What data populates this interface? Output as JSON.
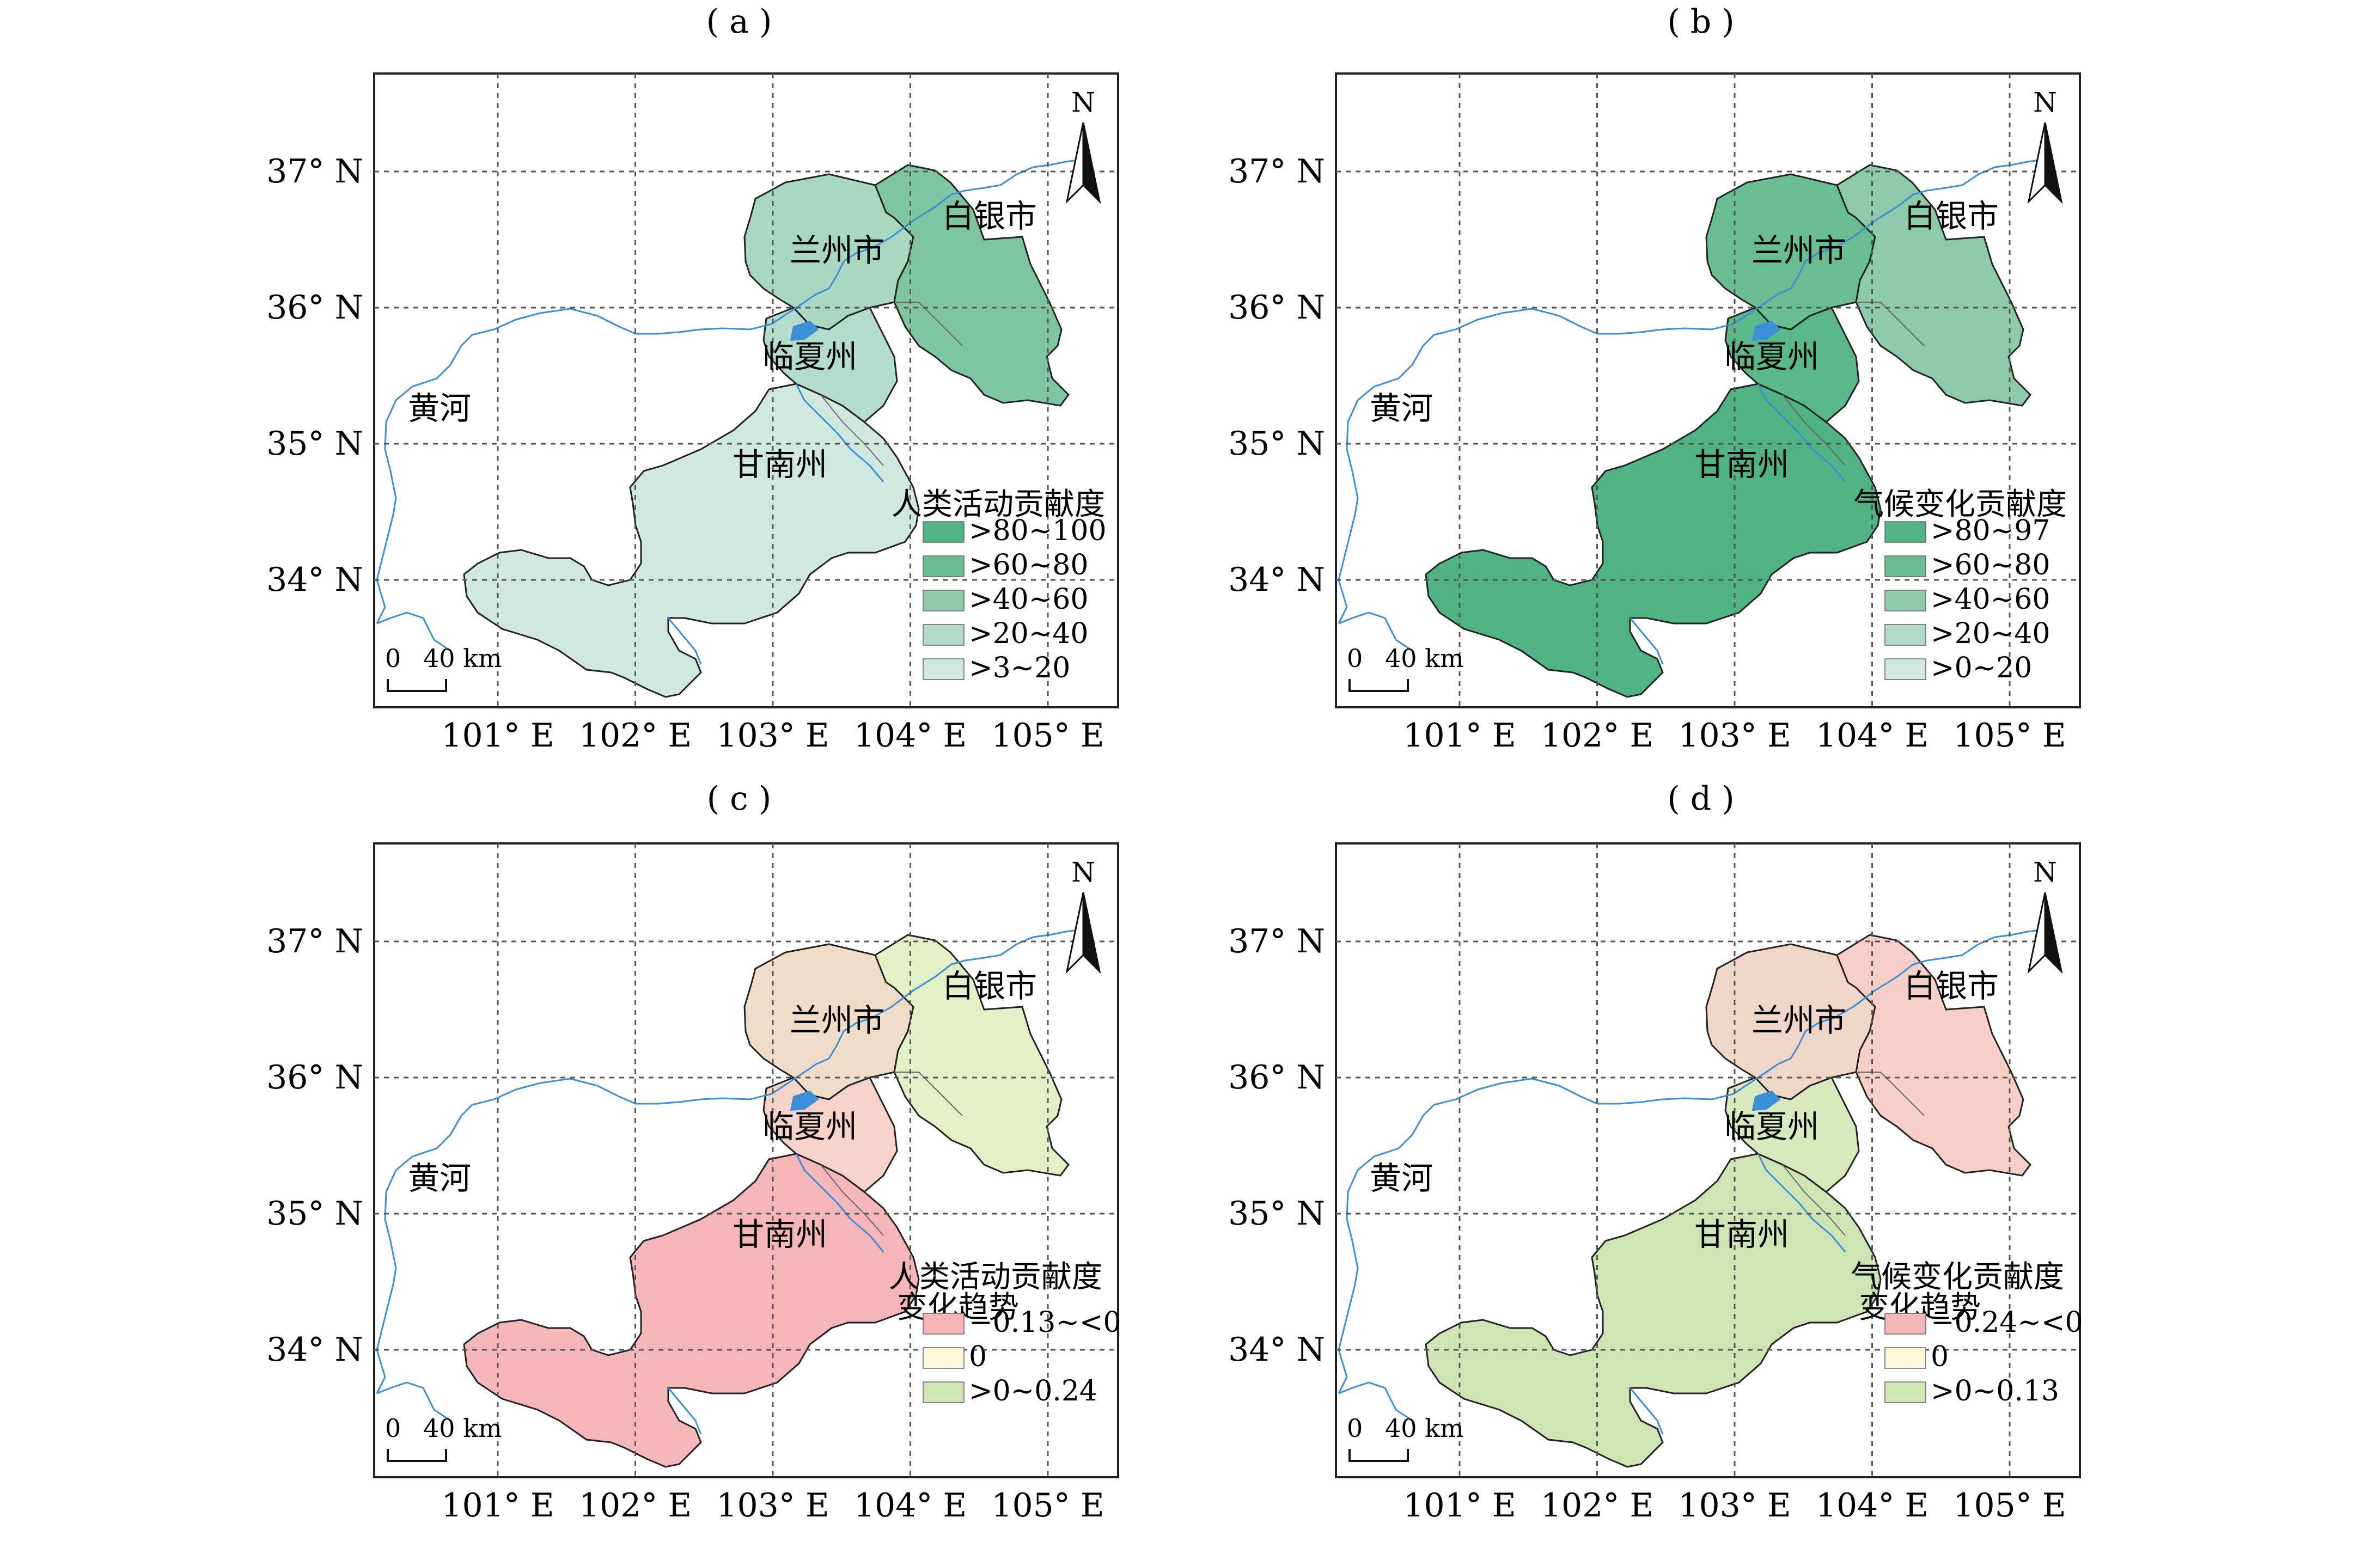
{
  "panels": [
    {
      "label": "( a )",
      "legend_title": [
        "人类活动贡献度"
      ],
      "legend": [
        {
          "label": ">80~100",
          "color": "#4fb383"
        },
        {
          "label": ">60~80",
          "color": "#68bd91"
        },
        {
          "label": ">40~60",
          "color": "#8ccaaa"
        },
        {
          "label": ">20~40",
          "color": "#b1dac7"
        },
        {
          "label": ">3~20",
          "color": "#cfe8e0"
        }
      ],
      "fills": {
        "north": "#7ec6a1",
        "lanzhou": "#a8d8c2",
        "linxia": "#b4dccb",
        "gannan": "#cfe8e0"
      }
    },
    {
      "label": "( b )",
      "legend_title": [
        "气候变化贡献度"
      ],
      "legend": [
        {
          "label": ">80~97",
          "color": "#4fb383"
        },
        {
          "label": ">60~80",
          "color": "#68bd91"
        },
        {
          "label": ">40~60",
          "color": "#8ccaaa"
        },
        {
          "label": ">20~40",
          "color": "#b1dac7"
        },
        {
          "label": ">0~20",
          "color": "#cfe8e0"
        }
      ],
      "fills": {
        "north": "#8ccaaa",
        "lanzhou": "#68bd91",
        "linxia": "#5ab889",
        "gannan": "#4fb383"
      }
    },
    {
      "label": "( c )",
      "legend_title": [
        "人类活动贡献度",
        "变化趋势"
      ],
      "legend": [
        {
          "label": "−0.13~<0",
          "color": "#f4b6b8"
        },
        {
          "label": "0",
          "color": "#fcf7d8"
        },
        {
          "label": ">0~0.24",
          "color": "#cfe4b5"
        }
      ],
      "fills": {
        "north": "#e3efc6",
        "lanzhou": "#f1dcc8",
        "linxia": "#f6d3c9",
        "gannan": "#f4b6b8"
      }
    },
    {
      "label": "( d )",
      "legend_title": [
        "气候变化贡献度",
        "变化趋势"
      ],
      "legend": [
        {
          "label": "−0.24~<0",
          "color": "#f4b6b8"
        },
        {
          "label": "0",
          "color": "#fcf7d8"
        },
        {
          "label": ">0~0.13",
          "color": "#cfe4b5"
        }
      ],
      "fills": {
        "north": "#f6cfc7",
        "lanzhou": "#f0d6c6",
        "linxia": "#d8e9bd",
        "gannan": "#cfe4b5"
      }
    }
  ],
  "lat_labels": [
    "37° N",
    "36° N",
    "35° N",
    "34° N"
  ],
  "lon_labels": [
    "101° E",
    "102° E",
    "103° E",
    "104° E",
    "105° E"
  ],
  "places": {
    "lanzhou": "兰州市",
    "baiyin": "白银市",
    "linxia": "临夏州",
    "gannan": "甘南州",
    "yellow_river": "黄河"
  },
  "north_label": "N",
  "scale": {
    "zero": "0",
    "distance": "40 km"
  },
  "colors": {
    "river": "#3a8fd8",
    "boundary": "#3a3a3a",
    "grid": "#555555"
  }
}
